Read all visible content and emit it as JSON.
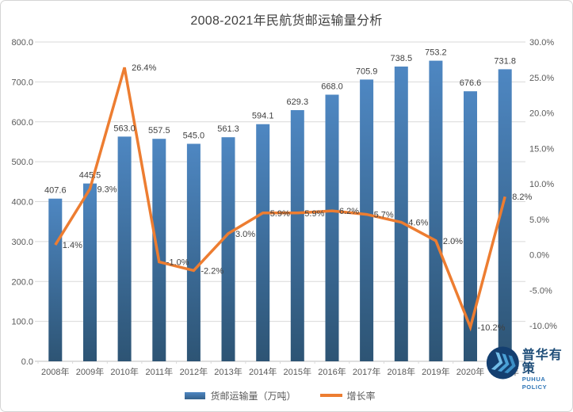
{
  "window": {
    "title": "2008-2021年民航货邮运输量分析"
  },
  "chart_data": {
    "type": "combo",
    "title": "2008-2021年民航货邮运输量分析",
    "categories": [
      "2008年",
      "2009年",
      "2010年",
      "2011年",
      "2012年",
      "2013年",
      "2014年",
      "2015年",
      "2016年",
      "2017年",
      "2018年",
      "2019年",
      "2020年",
      "2021年"
    ],
    "series": [
      {
        "name": "货邮运输量（万吨）",
        "type": "bar",
        "axis": "left",
        "values": [
          407.6,
          445.5,
          563.0,
          557.5,
          545.0,
          561.3,
          594.1,
          629.3,
          668.0,
          705.9,
          738.5,
          753.2,
          676.6,
          731.8
        ],
        "label_format": "0.0"
      },
      {
        "name": "增长率",
        "type": "line",
        "axis": "right",
        "values": [
          1.4,
          9.3,
          26.4,
          -1.0,
          -2.2,
          3.0,
          5.9,
          5.9,
          6.2,
          5.7,
          4.6,
          2.0,
          -10.2,
          8.2
        ],
        "label_format": "0.0%"
      }
    ],
    "left_axis": {
      "min": 0,
      "max": 800,
      "step": 100,
      "tick_labels": [
        "800.0",
        "700.0",
        "600.0",
        "500.0",
        "400.0",
        "300.0",
        "200.0",
        "100.0",
        "0.0"
      ]
    },
    "right_axis": {
      "min": -15,
      "max": 30,
      "step": 5,
      "tick_labels": [
        "30.0%",
        "25.0%",
        "20.0%",
        "15.0%",
        "10.0%",
        "5.0%",
        "0.0%",
        "-5.0%",
        "-10.0%"
      ]
    },
    "grid": true,
    "legend_position": "bottom",
    "colors": {
      "bar_top": "#4e87c2",
      "bar_bottom": "#2d5474",
      "line": "#ed7d31",
      "grid": "#d9d9d9",
      "axis_line": "#bfbfbf",
      "axis_text": "#595959",
      "label_text": "#404040"
    }
  },
  "logo": {
    "name": "普华有策",
    "latin": "PUHUA POLICY",
    "icon": "triple-chevron-icon"
  }
}
